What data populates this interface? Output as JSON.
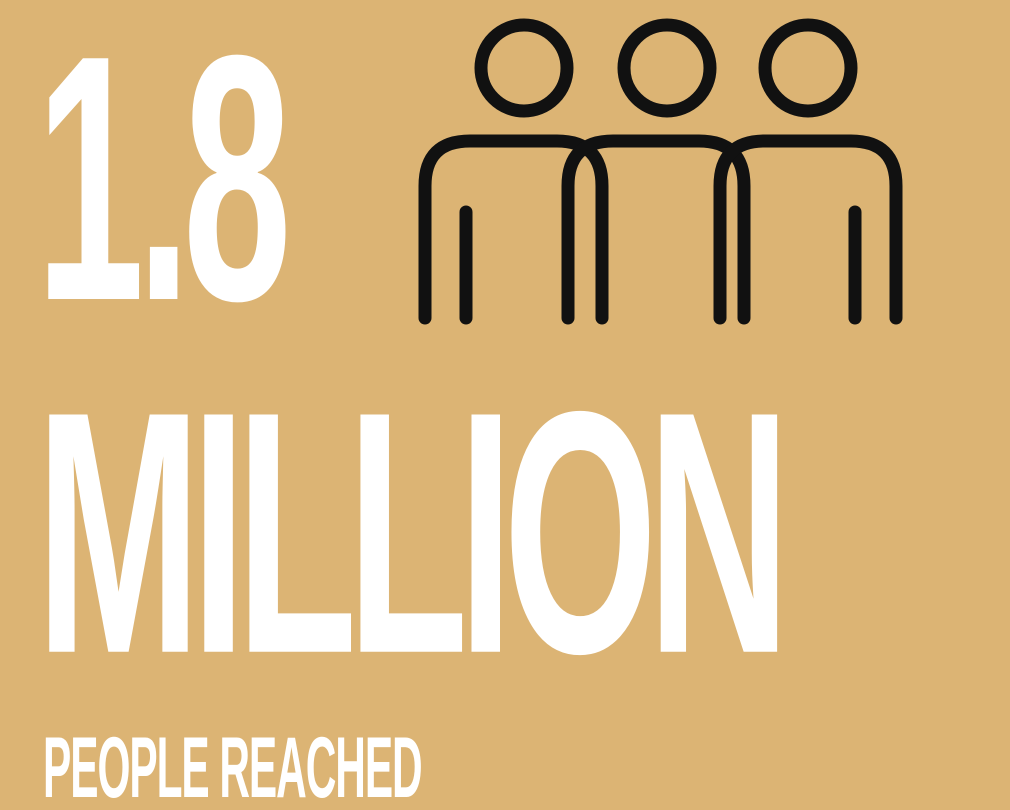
{
  "background_color": "#dcb474",
  "text_color": "#ffffff",
  "icon_color": "#111111",
  "headline": {
    "number": "1.8",
    "unit": "MILLION"
  },
  "caption": "PEOPLE REACHED",
  "icon": "three-people-icon"
}
